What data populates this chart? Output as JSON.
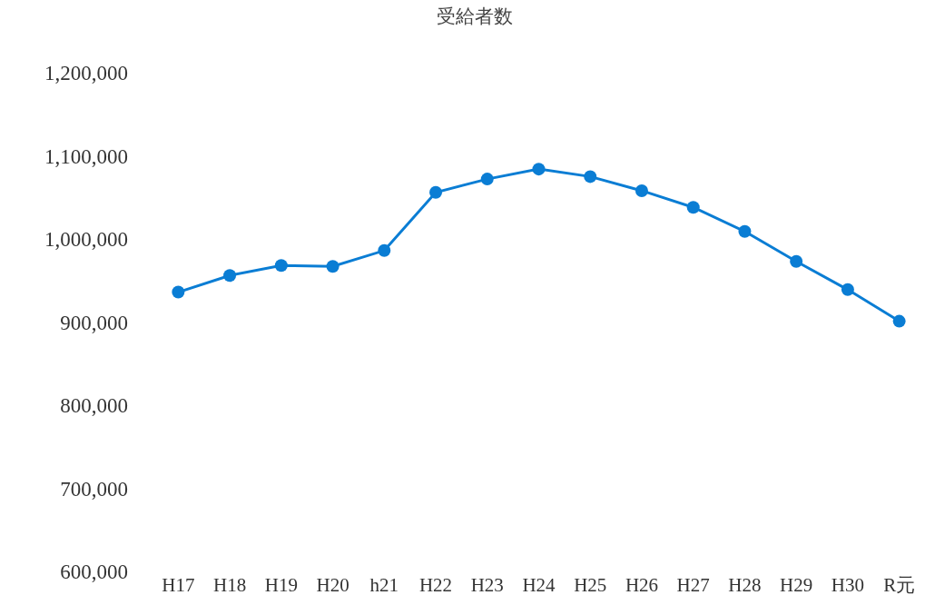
{
  "chart_data": {
    "type": "line",
    "title": "受給者数",
    "categories": [
      "H17",
      "H18",
      "H19",
      "H20",
      "h21",
      "H22",
      "H23",
      "H24",
      "H25",
      "H26",
      "H27",
      "H28",
      "H29",
      "H30",
      "R元"
    ],
    "series": [
      {
        "color": "#0a7dd4",
        "values": [
          936000,
          956000,
          968000,
          967000,
          986000,
          1056000,
          1072000,
          1084000,
          1075000,
          1058000,
          1038000,
          1009000,
          973000,
          939000,
          901000
        ]
      }
    ],
    "ylim": [
      600000,
      1200000
    ],
    "yticks": [
      {
        "value": 600000,
        "label": "600,000"
      },
      {
        "value": 700000,
        "label": "700,000"
      },
      {
        "value": 800000,
        "label": "800,000"
      },
      {
        "value": 900000,
        "label": "900,000"
      },
      {
        "value": 1000000,
        "label": "1,000,000"
      },
      {
        "value": 1100000,
        "label": "1,100,000"
      },
      {
        "value": 1200000,
        "label": "1,200,000"
      }
    ],
    "grid": false,
    "marker": "circle",
    "line_style": "solid"
  }
}
